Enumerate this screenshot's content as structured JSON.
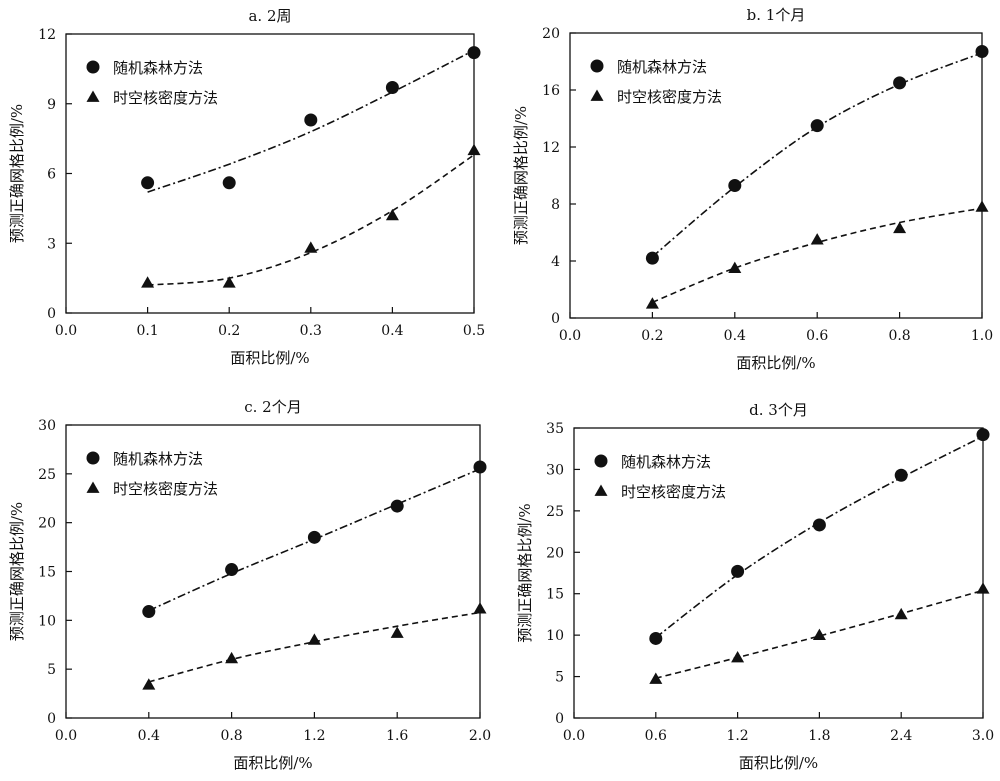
{
  "chart_data": [
    {
      "type": "scatter",
      "title": "a. 2周",
      "xlabel": "面积比例/%",
      "ylabel": "预测正确网格比例/%",
      "xlim": [
        0,
        0.5
      ],
      "ylim": [
        0,
        12
      ],
      "xticks": [
        "0.0",
        "0.1",
        "0.2",
        "0.3",
        "0.4",
        "0.5"
      ],
      "yticks": [
        "0",
        "3",
        "6",
        "9",
        "12"
      ],
      "legend": "top-left",
      "grid": false,
      "series": [
        {
          "name": "随机森林方法",
          "marker": "circle",
          "line": "dash-dot",
          "x": [
            0.1,
            0.2,
            0.3,
            0.4,
            0.5
          ],
          "values": [
            5.6,
            5.6,
            8.3,
            9.7,
            11.2
          ],
          "fit": [
            5.2,
            6.4,
            7.8,
            9.5,
            11.3
          ]
        },
        {
          "name": "时空核密度方法",
          "marker": "triangle",
          "line": "dashed",
          "x": [
            0.1,
            0.2,
            0.3,
            0.4,
            0.5
          ],
          "values": [
            1.3,
            1.3,
            2.8,
            4.2,
            7.0
          ],
          "fit": [
            1.2,
            1.5,
            2.6,
            4.4,
            6.8
          ]
        }
      ]
    },
    {
      "type": "scatter",
      "title": "b. 1个月",
      "xlabel": "面积比例/%",
      "ylabel": "预测正确网格比例/%",
      "xlim": [
        0,
        1.0
      ],
      "ylim": [
        0,
        20
      ],
      "xticks": [
        "0.0",
        "0.2",
        "0.4",
        "0.6",
        "0.8",
        "1.0"
      ],
      "yticks": [
        "0",
        "4",
        "8",
        "12",
        "16",
        "20"
      ],
      "legend": "top-left",
      "grid": false,
      "series": [
        {
          "name": "随机森林方法",
          "marker": "circle",
          "line": "dash-dot",
          "x": [
            0.2,
            0.4,
            0.6,
            0.8,
            1.0
          ],
          "values": [
            4.2,
            9.3,
            13.5,
            16.5,
            18.7
          ],
          "fit": [
            4.3,
            9.2,
            13.4,
            16.4,
            18.6
          ]
        },
        {
          "name": "时空核密度方法",
          "marker": "triangle",
          "line": "dashed",
          "x": [
            0.2,
            0.4,
            0.6,
            0.8,
            1.0
          ],
          "values": [
            1.0,
            3.5,
            5.5,
            6.3,
            7.8
          ],
          "fit": [
            1.1,
            3.5,
            5.3,
            6.7,
            7.7
          ]
        }
      ]
    },
    {
      "type": "scatter",
      "title": "c. 2个月",
      "xlabel": "面积比例/%",
      "ylabel": "预测正确网格比例/%",
      "xlim": [
        0,
        2.0
      ],
      "ylim": [
        0,
        30
      ],
      "xticks": [
        "0.0",
        "0.4",
        "0.8",
        "1.2",
        "1.6",
        "2.0"
      ],
      "yticks": [
        "0",
        "5",
        "10",
        "15",
        "20",
        "25",
        "30"
      ],
      "legend": "top-left",
      "grid": false,
      "series": [
        {
          "name": "随机森林方法",
          "marker": "circle",
          "line": "dash-dot",
          "x": [
            0.4,
            0.8,
            1.2,
            1.6,
            2.0
          ],
          "values": [
            10.9,
            15.2,
            18.5,
            21.7,
            25.7
          ],
          "fit": [
            11.0,
            14.8,
            18.3,
            21.9,
            25.5
          ]
        },
        {
          "name": "时空核密度方法",
          "marker": "triangle",
          "line": "dashed",
          "x": [
            0.4,
            0.8,
            1.2,
            1.6,
            2.0
          ],
          "values": [
            3.4,
            6.1,
            8.0,
            8.7,
            11.2
          ],
          "fit": [
            3.7,
            6.0,
            7.8,
            9.4,
            10.8
          ]
        }
      ]
    },
    {
      "type": "scatter",
      "title": "d. 3个月",
      "xlabel": "面积比例/%",
      "ylabel": "预测正确网格比例/%",
      "xlim": [
        0,
        3.0
      ],
      "ylim": [
        0,
        35
      ],
      "xticks": [
        "0.0",
        "0.6",
        "1.2",
        "1.8",
        "2.4",
        "3.0"
      ],
      "yticks": [
        "0",
        "5",
        "10",
        "15",
        "20",
        "25",
        "30",
        "35"
      ],
      "legend": "top-left",
      "grid": false,
      "series": [
        {
          "name": "随机森林方法",
          "marker": "circle",
          "line": "dash-dot",
          "x": [
            0.6,
            1.2,
            1.8,
            2.4,
            3.0
          ],
          "values": [
            9.6,
            17.7,
            23.3,
            29.3,
            34.2
          ],
          "fit": [
            9.7,
            17.3,
            23.6,
            29.0,
            34.0
          ]
        },
        {
          "name": "时空核密度方法",
          "marker": "triangle",
          "line": "dashed",
          "x": [
            0.6,
            1.2,
            1.8,
            2.4,
            3.0
          ],
          "values": [
            4.7,
            7.3,
            10.0,
            12.5,
            15.6
          ],
          "fit": [
            4.8,
            7.3,
            9.9,
            12.6,
            15.4
          ]
        }
      ]
    }
  ]
}
